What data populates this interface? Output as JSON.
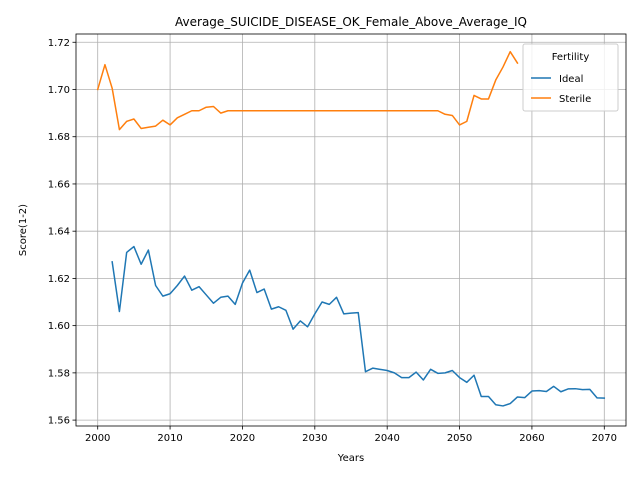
{
  "chart_data": {
    "type": "line",
    "title": "Average_SUICIDE_DISEASE_OK_Female_Above_Average_IQ",
    "xlabel": "Years",
    "ylabel": "Score(1-2)",
    "xlim": [
      1997,
      2073
    ],
    "ylim": [
      1.5575,
      1.7235
    ],
    "xticks": [
      2000,
      2010,
      2020,
      2030,
      2040,
      2050,
      2060,
      2070
    ],
    "yticks": [
      1.56,
      1.58,
      1.6,
      1.62,
      1.64,
      1.66,
      1.68,
      1.7,
      1.72
    ],
    "ytick_labels": [
      "1.56",
      "1.58",
      "1.60",
      "1.62",
      "1.64",
      "1.66",
      "1.68",
      "1.70",
      "1.72"
    ],
    "grid": true,
    "legend": {
      "title": "Fertility",
      "placement": "top-right"
    },
    "series": [
      {
        "name": "Ideal",
        "color": "#1f77b4",
        "x": [
          2002,
          2003,
          2004,
          2005,
          2006,
          2007,
          2008,
          2009,
          2010,
          2011,
          2012,
          2013,
          2014,
          2015,
          2016,
          2017,
          2018,
          2019,
          2020,
          2021,
          2022,
          2023,
          2024,
          2025,
          2026,
          2027,
          2028,
          2029,
          2030,
          2031,
          2032,
          2033,
          2034,
          2035,
          2036,
          2037,
          2038,
          2039,
          2040,
          2041,
          2042,
          2043,
          2044,
          2045,
          2046,
          2047,
          2048,
          2049,
          2050,
          2051,
          2052,
          2053,
          2054,
          2055,
          2056,
          2057,
          2058,
          2059,
          2060,
          2061,
          2062,
          2063,
          2064,
          2065,
          2066,
          2067,
          2068,
          2069,
          2070
        ],
        "values": [
          1.627,
          1.606,
          1.631,
          1.6335,
          1.626,
          1.632,
          1.617,
          1.6125,
          1.6135,
          1.617,
          1.621,
          1.615,
          1.6165,
          1.613,
          1.6095,
          1.612,
          1.6125,
          1.609,
          1.618,
          1.6235,
          1.614,
          1.6155,
          1.607,
          1.608,
          1.6065,
          1.5985,
          1.602,
          1.5995,
          1.605,
          1.61,
          1.609,
          1.612,
          1.605,
          1.6053,
          1.6055,
          1.5805,
          1.582,
          1.5815,
          1.581,
          1.58,
          1.578,
          1.578,
          1.5803,
          1.577,
          1.5815,
          1.5798,
          1.58,
          1.581,
          1.578,
          1.576,
          1.579,
          1.57,
          1.57,
          1.5665,
          1.566,
          1.567,
          1.5698,
          1.5695,
          1.5723,
          1.5725,
          1.5721,
          1.5743,
          1.572,
          1.5732,
          1.5733,
          1.5729,
          1.573,
          1.5694,
          1.5693
        ]
      },
      {
        "name": "Sterile",
        "color": "#ff7f0e",
        "x": [
          2000,
          2001,
          2002,
          2003,
          2004,
          2005,
          2006,
          2007,
          2008,
          2009,
          2010,
          2011,
          2012,
          2013,
          2014,
          2015,
          2016,
          2017,
          2018,
          2019,
          2020,
          2021,
          2022,
          2023,
          2024,
          2025,
          2026,
          2027,
          2028,
          2029,
          2030,
          2031,
          2032,
          2033,
          2034,
          2035,
          2036,
          2037,
          2038,
          2039,
          2040,
          2041,
          2042,
          2043,
          2044,
          2045,
          2046,
          2047,
          2048,
          2049,
          2050,
          2051,
          2052,
          2053,
          2054,
          2055,
          2056,
          2057,
          2058
        ],
        "values": [
          1.7,
          1.7105,
          1.7005,
          1.683,
          1.6865,
          1.6875,
          1.6835,
          1.684,
          1.6845,
          1.687,
          1.685,
          1.688,
          1.6895,
          1.691,
          1.691,
          1.6925,
          1.6928,
          1.69,
          1.691,
          1.691,
          1.691,
          1.691,
          1.691,
          1.691,
          1.691,
          1.691,
          1.691,
          1.691,
          1.691,
          1.691,
          1.691,
          1.691,
          1.691,
          1.691,
          1.691,
          1.691,
          1.691,
          1.691,
          1.691,
          1.691,
          1.691,
          1.691,
          1.691,
          1.691,
          1.691,
          1.691,
          1.691,
          1.691,
          1.6895,
          1.689,
          1.685,
          1.6865,
          1.6975,
          1.696,
          1.696,
          1.704,
          1.7095,
          1.716,
          1.7112
        ]
      }
    ]
  }
}
